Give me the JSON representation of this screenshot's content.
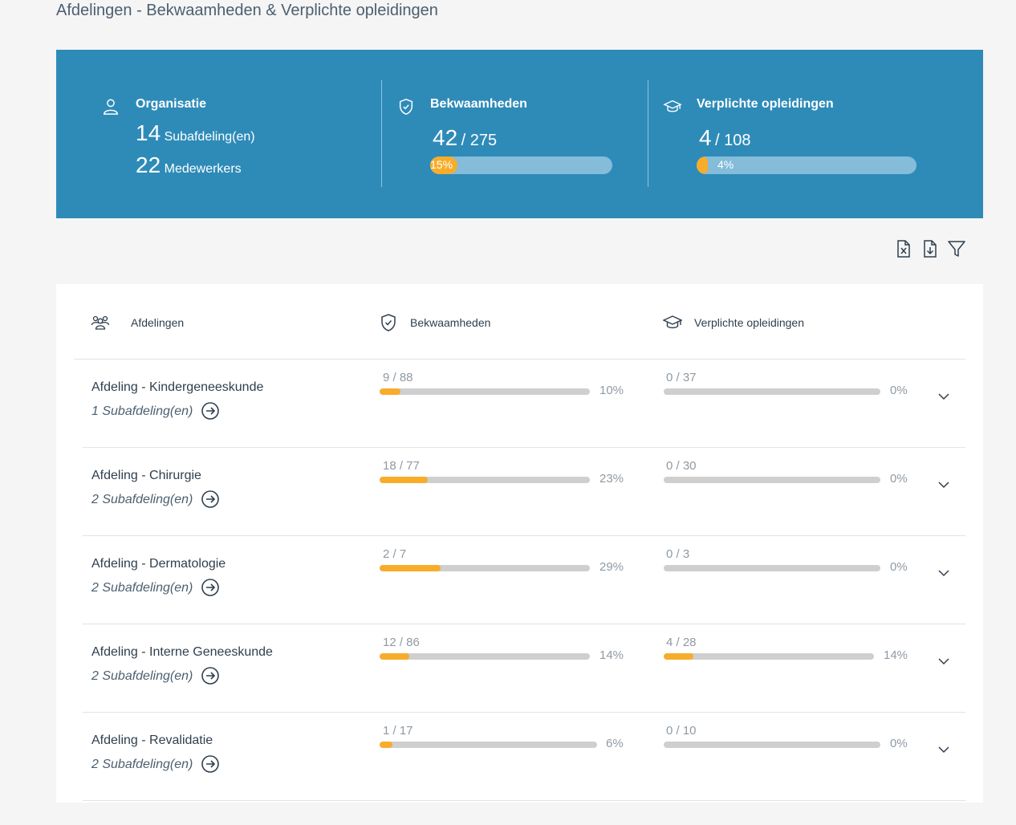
{
  "page": {
    "title": "Afdelingen - Bekwaamheden & Verplichte opleidingen"
  },
  "summary": {
    "organisatie": {
      "title": "Organisatie",
      "subafdelingen_count": "14",
      "subafdelingen_label": "Subafdeling(en)",
      "medewerkers_count": "22",
      "medewerkers_label": "Medewerkers"
    },
    "bekwaamheden": {
      "title": "Bekwaamheden",
      "value": "42",
      "total": "/ 275",
      "percent_label": "15%",
      "fraction": 0.15
    },
    "opleidingen": {
      "title": "Verplichte opleidingen",
      "value": "4",
      "total": "/ 108",
      "percent_label": "4%",
      "fraction": 0.04
    }
  },
  "toolbar": {
    "excel_icon": "file-excel-icon",
    "download_icon": "file-download-icon",
    "filter_icon": "filter-icon"
  },
  "table": {
    "headers": {
      "afdelingen": "Afdelingen",
      "bekwaamheden": "Bekwaamheden",
      "opleidingen": "Verplichte opleidingen"
    },
    "rows": [
      {
        "name": "Afdeling - Kindergeneeskunde",
        "sub": "1 Subafdeling(en)",
        "bek_frac": "9 / 88",
        "bek_pct": "10%",
        "bek_value": 0.1,
        "opl_frac": "0 / 37",
        "opl_pct": "0%",
        "opl_value": 0.0
      },
      {
        "name": "Afdeling - Chirurgie",
        "sub": "2 Subafdeling(en)",
        "bek_frac": "18 / 77",
        "bek_pct": "23%",
        "bek_value": 0.23,
        "opl_frac": "0 / 30",
        "opl_pct": "0%",
        "opl_value": 0.0
      },
      {
        "name": "Afdeling - Dermatologie",
        "sub": "2 Subafdeling(en)",
        "bek_frac": "2 / 7",
        "bek_pct": "29%",
        "bek_value": 0.29,
        "opl_frac": "0 / 3",
        "opl_pct": "0%",
        "opl_value": 0.0
      },
      {
        "name": "Afdeling - Interne Geneeskunde",
        "sub": "2 Subafdeling(en)",
        "bek_frac": "12 / 86",
        "bek_pct": "14%",
        "bek_value": 0.14,
        "opl_frac": "4 / 28",
        "opl_pct": "14%",
        "opl_value": 0.14
      },
      {
        "name": "Afdeling - Revalidatie",
        "sub": "2 Subafdeling(en)",
        "bek_frac": "1 / 17",
        "bek_pct": "6%",
        "bek_value": 0.06,
        "opl_frac": "0 / 10",
        "opl_pct": "0%",
        "opl_value": 0.0
      }
    ]
  },
  "colors": {
    "banner": "#2e8bb8",
    "accent": "#f7ad2a",
    "track": "#cfcfcf"
  }
}
